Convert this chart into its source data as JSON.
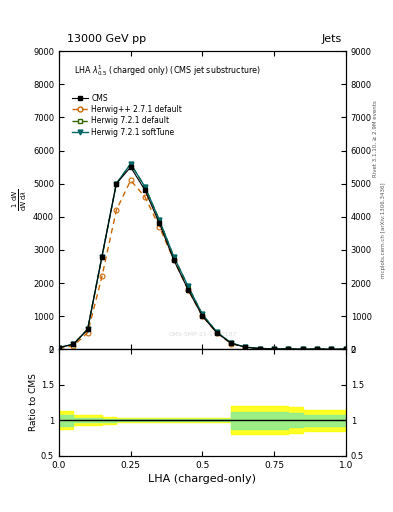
{
  "title_top": "13000 GeV pp",
  "title_right": "Jets",
  "plot_title": "LHA $\\lambda^{1}_{0.5}$ (charged only) (CMS jet substructure)",
  "right_label_top": "Rivet 3.1.10, ≥ 2.9M events",
  "right_label_bottom": "mcplots.cern.ch [arXiv:1306.3436]",
  "xlabel": "LHA (charged-only)",
  "ylabel_ratio": "Ratio to CMS",
  "xlim": [
    0.0,
    1.0
  ],
  "ylim_main": [
    0,
    9000
  ],
  "ylim_ratio": [
    0.5,
    2.0
  ],
  "x_data": [
    0.0,
    0.05,
    0.1,
    0.15,
    0.2,
    0.25,
    0.3,
    0.35,
    0.4,
    0.45,
    0.5,
    0.55,
    0.6,
    0.65,
    0.7,
    0.75,
    0.8,
    0.85,
    0.9,
    0.95,
    1.0
  ],
  "cms_data": [
    50,
    150,
    600,
    2800,
    5000,
    5500,
    4800,
    3800,
    2700,
    1800,
    1000,
    500,
    180,
    60,
    20,
    10,
    5,
    3,
    2,
    1,
    0
  ],
  "herwigpp_data": [
    30,
    100,
    500,
    2200,
    4200,
    5100,
    4600,
    3700,
    2700,
    1800,
    1000,
    490,
    170,
    50,
    15,
    7,
    3,
    2,
    1,
    0.5,
    0
  ],
  "herwig721_data": [
    50,
    150,
    600,
    2800,
    5000,
    5600,
    4900,
    3900,
    2800,
    1900,
    1050,
    520,
    185,
    65,
    22,
    11,
    6,
    3,
    2,
    1,
    0
  ],
  "herwig721st_data": [
    50,
    150,
    600,
    2800,
    5000,
    5600,
    4900,
    3900,
    2800,
    1900,
    1050,
    520,
    185,
    65,
    22,
    11,
    6,
    3,
    2,
    1,
    0
  ],
  "cms_color": "#000000",
  "herwigpp_color": "#cc6600",
  "herwig721_color": "#336600",
  "herwig721st_color": "#006666",
  "ratio_x": [
    0.0,
    0.05,
    0.1,
    0.15,
    0.2,
    0.25,
    0.3,
    0.35,
    0.4,
    0.45,
    0.5,
    0.55,
    0.6,
    0.65,
    0.7,
    0.75,
    0.8,
    0.85,
    0.9,
    0.95,
    1.0
  ],
  "ratio_green_y1": [
    0.92,
    0.97,
    0.97,
    0.98,
    0.99,
    0.99,
    0.99,
    0.99,
    0.99,
    0.99,
    0.99,
    0.99,
    0.88,
    0.88,
    0.88,
    0.88,
    0.9,
    0.92,
    0.92,
    0.92,
    0.92
  ],
  "ratio_green_y2": [
    1.08,
    1.03,
    1.03,
    1.02,
    1.01,
    1.01,
    1.01,
    1.01,
    1.01,
    1.01,
    1.01,
    1.01,
    1.12,
    1.12,
    1.12,
    1.12,
    1.1,
    1.08,
    1.08,
    1.08,
    1.08
  ],
  "ratio_yellow_y1": [
    0.87,
    0.93,
    0.93,
    0.95,
    0.97,
    0.97,
    0.97,
    0.97,
    0.97,
    0.97,
    0.97,
    0.97,
    0.8,
    0.8,
    0.8,
    0.8,
    0.82,
    0.85,
    0.85,
    0.85,
    0.85
  ],
  "ratio_yellow_y2": [
    1.13,
    1.07,
    1.07,
    1.05,
    1.03,
    1.03,
    1.03,
    1.03,
    1.03,
    1.03,
    1.03,
    1.03,
    1.2,
    1.2,
    1.2,
    1.2,
    1.18,
    1.15,
    1.15,
    1.15,
    1.15
  ],
  "watermark": "CMS-SMP-21-1920187",
  "yticks_main": [
    0,
    1000,
    2000,
    3000,
    4000,
    5000,
    6000,
    7000,
    8000,
    9000
  ],
  "yticks_ratio": [
    0.5,
    1.0,
    1.5,
    2.0
  ],
  "xticks": [
    0.0,
    0.25,
    0.5,
    0.75,
    1.0
  ]
}
